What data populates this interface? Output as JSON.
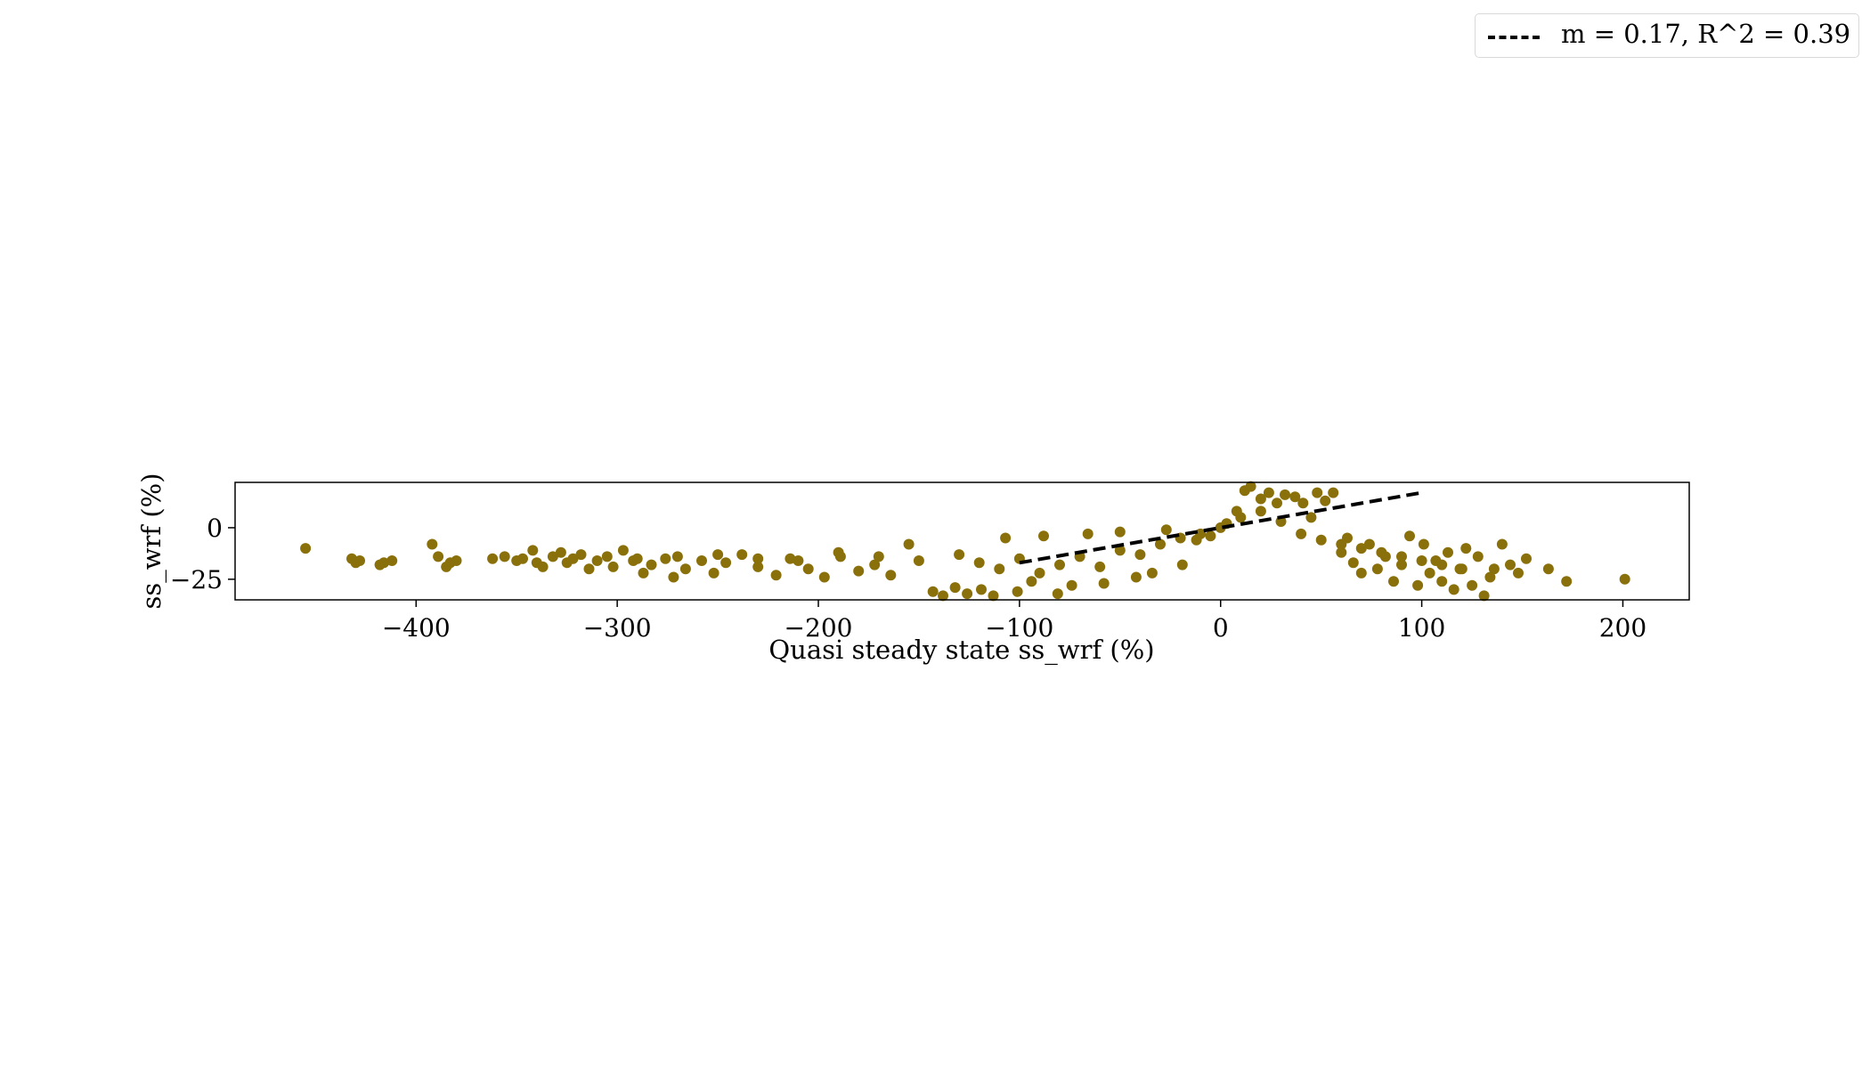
{
  "chart_data": {
    "type": "scatter",
    "xlabel": "Quasi steady state ss_wrf (%)",
    "ylabel": "ss_wrf (%)",
    "xlim": [
      -490,
      233
    ],
    "ylim": [
      -35,
      22
    ],
    "x_ticks": [
      -400,
      -300,
      -200,
      -100,
      0,
      100,
      200
    ],
    "x_tick_labels": [
      "−400",
      "−300",
      "−200",
      "−100",
      "0",
      "100",
      "200"
    ],
    "y_ticks": [
      0,
      -25
    ],
    "y_tick_labels": [
      "0",
      "−25"
    ],
    "grid": false,
    "legend_position": "top-right",
    "point_color": "#8a700a",
    "series": [
      {
        "type": "scatter",
        "points": [
          [
            -455,
            -10
          ],
          [
            -432,
            -15
          ],
          [
            -430,
            -17
          ],
          [
            -428,
            -16
          ],
          [
            -418,
            -18
          ],
          [
            -416,
            -17
          ],
          [
            -412,
            -16
          ],
          [
            -392,
            -8
          ],
          [
            -389,
            -14
          ],
          [
            -385,
            -19
          ],
          [
            -383,
            -17
          ],
          [
            -380,
            -16
          ],
          [
            -362,
            -15
          ],
          [
            -356,
            -14
          ],
          [
            -350,
            -16
          ],
          [
            -347,
            -15
          ],
          [
            -342,
            -11
          ],
          [
            -340,
            -17
          ],
          [
            -337,
            -19
          ],
          [
            -332,
            -14
          ],
          [
            -328,
            -12
          ],
          [
            -325,
            -17
          ],
          [
            -322,
            -15
          ],
          [
            -318,
            -13
          ],
          [
            -314,
            -20
          ],
          [
            -310,
            -16
          ],
          [
            -305,
            -14
          ],
          [
            -302,
            -19
          ],
          [
            -297,
            -11
          ],
          [
            -292,
            -16
          ],
          [
            -287,
            -22
          ],
          [
            -283,
            -18
          ],
          [
            -276,
            -15
          ],
          [
            -272,
            -24
          ],
          [
            -266,
            -20
          ],
          [
            -258,
            -16
          ],
          [
            -252,
            -22
          ],
          [
            -246,
            -17
          ],
          [
            -238,
            -13
          ],
          [
            -230,
            -19
          ],
          [
            -221,
            -23
          ],
          [
            -214,
            -15
          ],
          [
            -205,
            -20
          ],
          [
            -197,
            -24
          ],
          [
            -189,
            -14
          ],
          [
            -180,
            -21
          ],
          [
            -172,
            -18
          ],
          [
            -164,
            -23
          ],
          [
            -155,
            -8
          ],
          [
            -143,
            -31
          ],
          [
            -138,
            -33
          ],
          [
            -132,
            -29
          ],
          [
            -126,
            -32
          ],
          [
            -119,
            -30
          ],
          [
            -113,
            -33
          ],
          [
            -107,
            -5
          ],
          [
            -101,
            -31
          ],
          [
            -94,
            -26
          ],
          [
            -88,
            -4
          ],
          [
            -81,
            -32
          ],
          [
            -74,
            -28
          ],
          [
            -66,
            -3
          ],
          [
            -58,
            -27
          ],
          [
            -50,
            -2
          ],
          [
            -42,
            -24
          ],
          [
            -34,
            -22
          ],
          [
            -27,
            -1
          ],
          [
            -19,
            -18
          ],
          [
            -12,
            -6
          ],
          [
            -5,
            -4
          ],
          [
            3,
            2
          ],
          [
            8,
            8
          ],
          [
            12,
            18
          ],
          [
            15,
            20
          ],
          [
            20,
            14
          ],
          [
            24,
            17
          ],
          [
            28,
            12
          ],
          [
            32,
            16
          ],
          [
            37,
            15
          ],
          [
            41,
            12
          ],
          [
            45,
            5
          ],
          [
            48,
            17
          ],
          [
            52,
            13
          ],
          [
            56,
            17
          ],
          [
            60,
            -12
          ],
          [
            63,
            -5
          ],
          [
            66,
            -17
          ],
          [
            70,
            -22
          ],
          [
            74,
            -8
          ],
          [
            78,
            -20
          ],
          [
            82,
            -14
          ],
          [
            86,
            -26
          ],
          [
            90,
            -18
          ],
          [
            94,
            -4
          ],
          [
            98,
            -28
          ],
          [
            101,
            -8
          ],
          [
            104,
            -22
          ],
          [
            107,
            -16
          ],
          [
            110,
            -26
          ],
          [
            113,
            -12
          ],
          [
            116,
            -30
          ],
          [
            119,
            -20
          ],
          [
            122,
            -10
          ],
          [
            125,
            -28
          ],
          [
            128,
            -14
          ],
          [
            131,
            -33
          ],
          [
            134,
            -24
          ],
          [
            136,
            -20
          ],
          [
            140,
            -8
          ],
          [
            144,
            -18
          ],
          [
            148,
            -22
          ],
          [
            152,
            -15
          ],
          [
            163,
            -20
          ],
          [
            172,
            -26
          ],
          [
            201,
            -25
          ],
          [
            -290,
            -15
          ],
          [
            -270,
            -14
          ],
          [
            -250,
            -13
          ],
          [
            -230,
            -15
          ],
          [
            -210,
            -16
          ],
          [
            -190,
            -12
          ],
          [
            -170,
            -14
          ],
          [
            -150,
            -16
          ],
          [
            -130,
            -13
          ],
          [
            -120,
            -17
          ],
          [
            -110,
            -20
          ],
          [
            -100,
            -15
          ],
          [
            -90,
            -22
          ],
          [
            -80,
            -18
          ],
          [
            -70,
            -14
          ],
          [
            -60,
            -19
          ],
          [
            -50,
            -11
          ],
          [
            -40,
            -13
          ],
          [
            -30,
            -8
          ],
          [
            -20,
            -5
          ],
          [
            -10,
            -3
          ],
          [
            0,
            0
          ],
          [
            10,
            5
          ],
          [
            20,
            8
          ],
          [
            30,
            3
          ],
          [
            40,
            -3
          ],
          [
            50,
            -6
          ],
          [
            60,
            -8
          ],
          [
            70,
            -10
          ],
          [
            80,
            -12
          ],
          [
            90,
            -14
          ],
          [
            100,
            -16
          ],
          [
            110,
            -18
          ],
          [
            120,
            -20
          ]
        ]
      },
      {
        "name": "m = 0.17, R^2 = 0.39",
        "type": "line",
        "style": "dashed",
        "color": "#000000",
        "x": [
          -100,
          100
        ],
        "y": [
          -17,
          17
        ]
      }
    ]
  }
}
